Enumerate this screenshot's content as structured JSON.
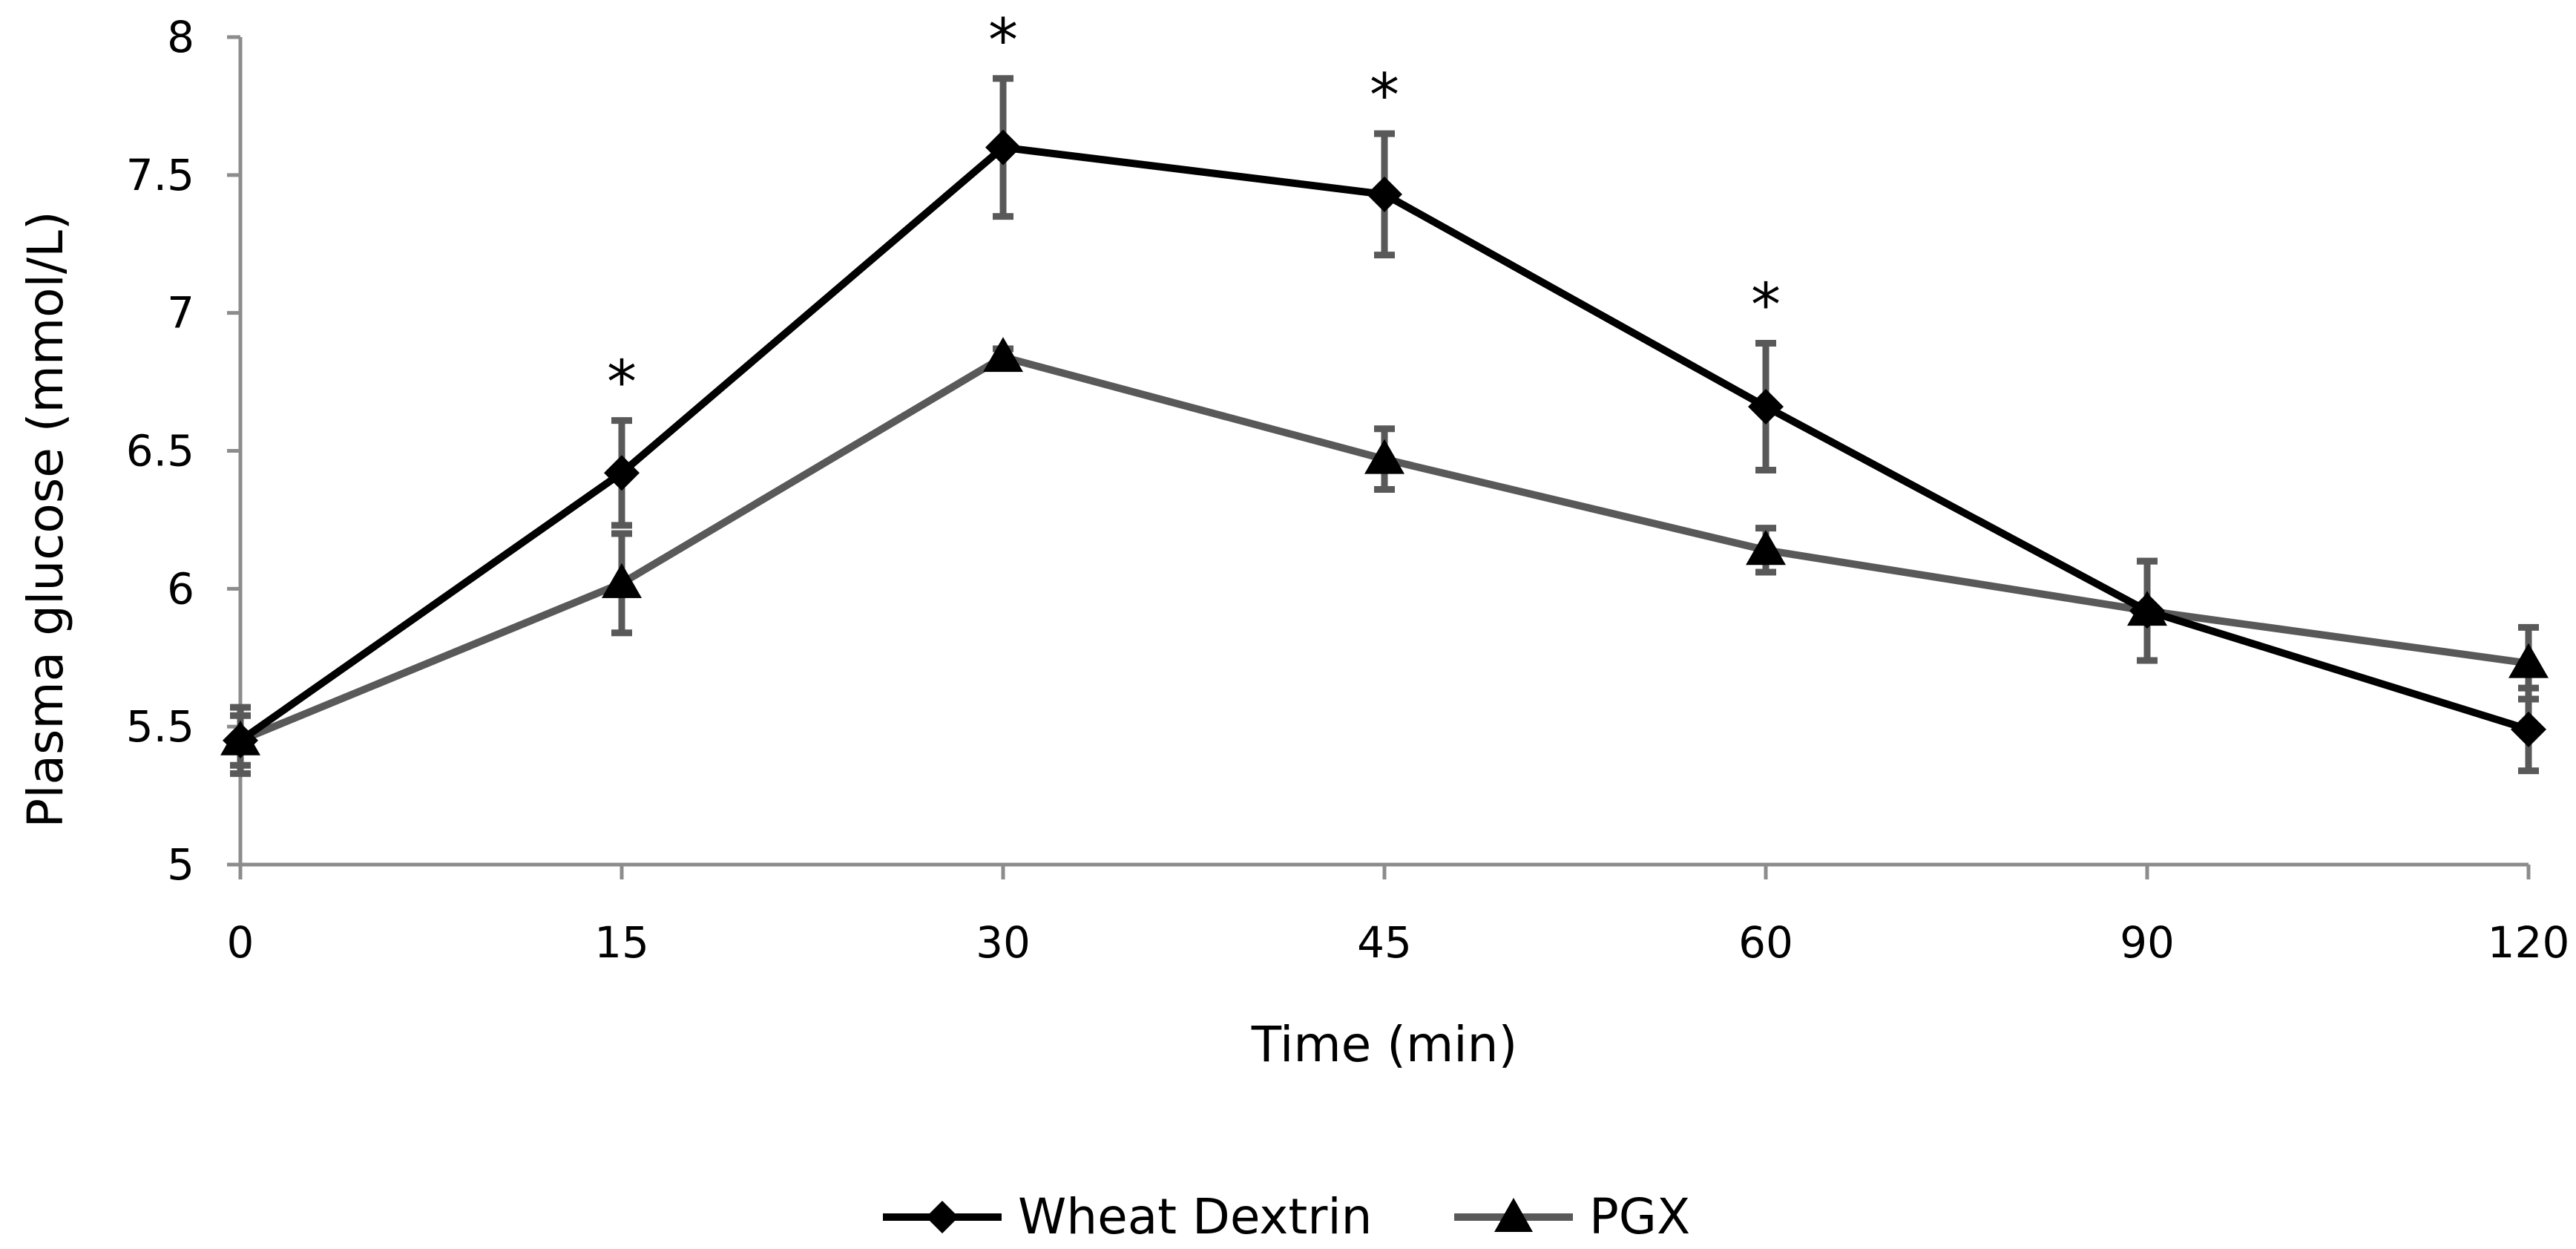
{
  "chart_data": {
    "type": "line",
    "title": "",
    "xlabel": "Time (min)",
    "ylabel": "Plasma glucose (mmol/L)",
    "categories": [
      "0",
      "15",
      "30",
      "45",
      "60",
      "90",
      "120"
    ],
    "ylim": [
      5,
      8
    ],
    "yticks": [
      "5",
      "5.5",
      "6",
      "6.5",
      "7",
      "7.5",
      "8"
    ],
    "grid": false,
    "legend_position": "bottom-center",
    "series": [
      {
        "name": "Wheat Dextrin",
        "marker": "diamond",
        "color": "#000000",
        "values": [
          5.45,
          6.42,
          7.6,
          7.43,
          6.66,
          5.92,
          5.49
        ],
        "error": [
          0.12,
          0.19,
          0.25,
          0.22,
          0.23,
          0.18,
          0.15
        ]
      },
      {
        "name": "PGX",
        "marker": "triangle",
        "color": "#595959",
        "values": [
          5.45,
          6.02,
          6.84,
          6.47,
          6.14,
          5.92,
          5.73
        ],
        "error": [
          0.09,
          0.18,
          0.03,
          0.11,
          0.08,
          0.18,
          0.13
        ]
      }
    ],
    "errorbar_color": "#595959",
    "significance": {
      "symbol": "*",
      "categories": [
        "15",
        "30",
        "45",
        "60"
      ]
    }
  }
}
